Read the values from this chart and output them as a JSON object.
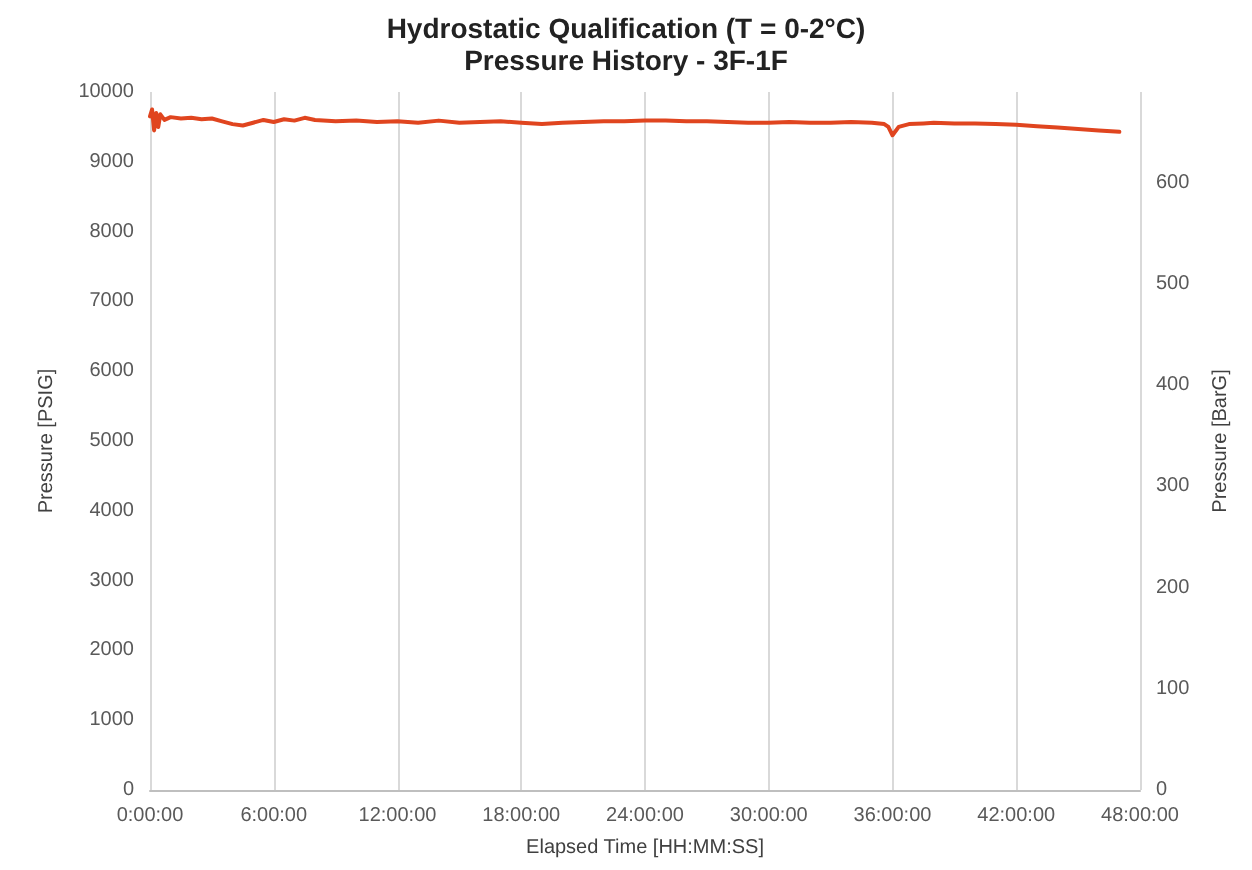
{
  "chart_data": {
    "type": "line",
    "title": "Hydrostatic Qualification (T = 0-2°C)",
    "subtitle": "Pressure History - 3F-1F",
    "xlabel": "Elapsed Time [HH:MM:SS]",
    "ylabel": "Pressure [PSIG]",
    "y2label": "Pressure [BarG]",
    "x": [
      0,
      0.1,
      0.2,
      0.3,
      0.4,
      0.5,
      0.7,
      1,
      1.5,
      2,
      2.5,
      3,
      3.5,
      4,
      4.5,
      5,
      5.5,
      6,
      6.5,
      7,
      7.5,
      8,
      9,
      10,
      11,
      12,
      13,
      14,
      15,
      16,
      17,
      18,
      19,
      20,
      21,
      22,
      23,
      24,
      25,
      26,
      27,
      28,
      29,
      30,
      31,
      32,
      33,
      34,
      35,
      35.6,
      35.8,
      36,
      36.3,
      36.8,
      37.5,
      38,
      39,
      40,
      41,
      42,
      43,
      44,
      45,
      46,
      47
    ],
    "series": [
      {
        "color": "#e0451f",
        "values": [
          9650,
          9750,
          9450,
          9700,
          9500,
          9680,
          9600,
          9640,
          9620,
          9630,
          9610,
          9620,
          9580,
          9540,
          9520,
          9560,
          9600,
          9570,
          9610,
          9590,
          9630,
          9600,
          9580,
          9590,
          9570,
          9580,
          9560,
          9590,
          9560,
          9570,
          9580,
          9560,
          9540,
          9560,
          9570,
          9580,
          9580,
          9590,
          9590,
          9580,
          9580,
          9570,
          9560,
          9560,
          9570,
          9560,
          9560,
          9570,
          9560,
          9540,
          9500,
          9380,
          9500,
          9540,
          9550,
          9560,
          9550,
          9550,
          9540,
          9530,
          9510,
          9490,
          9470,
          9450,
          9430
        ]
      }
    ],
    "xlim": [
      0,
      48
    ],
    "xticks": [
      {
        "value": 0,
        "label": "0:00:00"
      },
      {
        "value": 6,
        "label": "6:00:00"
      },
      {
        "value": 12,
        "label": "12:00:00"
      },
      {
        "value": 18,
        "label": "18:00:00"
      },
      {
        "value": 24,
        "label": "24:00:00"
      },
      {
        "value": 30,
        "label": "30:00:00"
      },
      {
        "value": 36,
        "label": "36:00:00"
      },
      {
        "value": 42,
        "label": "42:00:00"
      },
      {
        "value": 48,
        "label": "48:00:00"
      }
    ],
    "ylim": [
      0,
      10000
    ],
    "yticks": [
      0,
      1000,
      2000,
      3000,
      4000,
      5000,
      6000,
      7000,
      8000,
      9000,
      10000
    ],
    "y2lim": [
      0,
      689.5
    ],
    "y2ticks": [
      0,
      100,
      200,
      300,
      400,
      500,
      600
    ],
    "grid": "x",
    "marker": "none",
    "line_style": "solid"
  }
}
